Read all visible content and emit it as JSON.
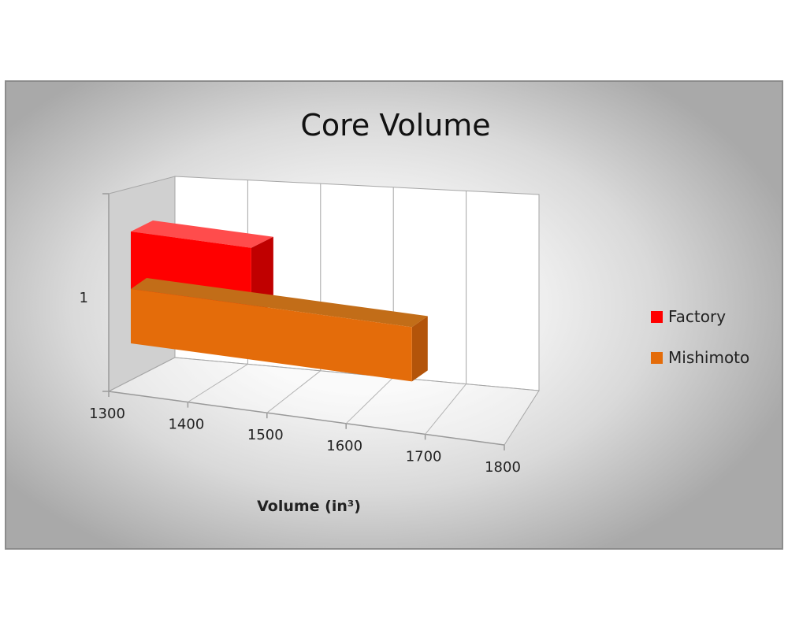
{
  "chart_data": {
    "type": "bar",
    "orientation": "horizontal",
    "style": "3d",
    "title": "Core Volume",
    "xlabel": "Volume (in³)",
    "ylabel": "",
    "categories": [
      "1"
    ],
    "series": [
      {
        "name": "Factory",
        "values": [
          1520
        ],
        "color": "#ff0000"
      },
      {
        "name": "Mishimoto",
        "values": [
          1745
        ],
        "color": "#e46c0a"
      }
    ],
    "xlim": [
      1300,
      1800
    ],
    "xticks": [
      "1300",
      "1400",
      "1500",
      "1600",
      "1700",
      "1800"
    ],
    "grid": true,
    "legend_position": "right"
  }
}
